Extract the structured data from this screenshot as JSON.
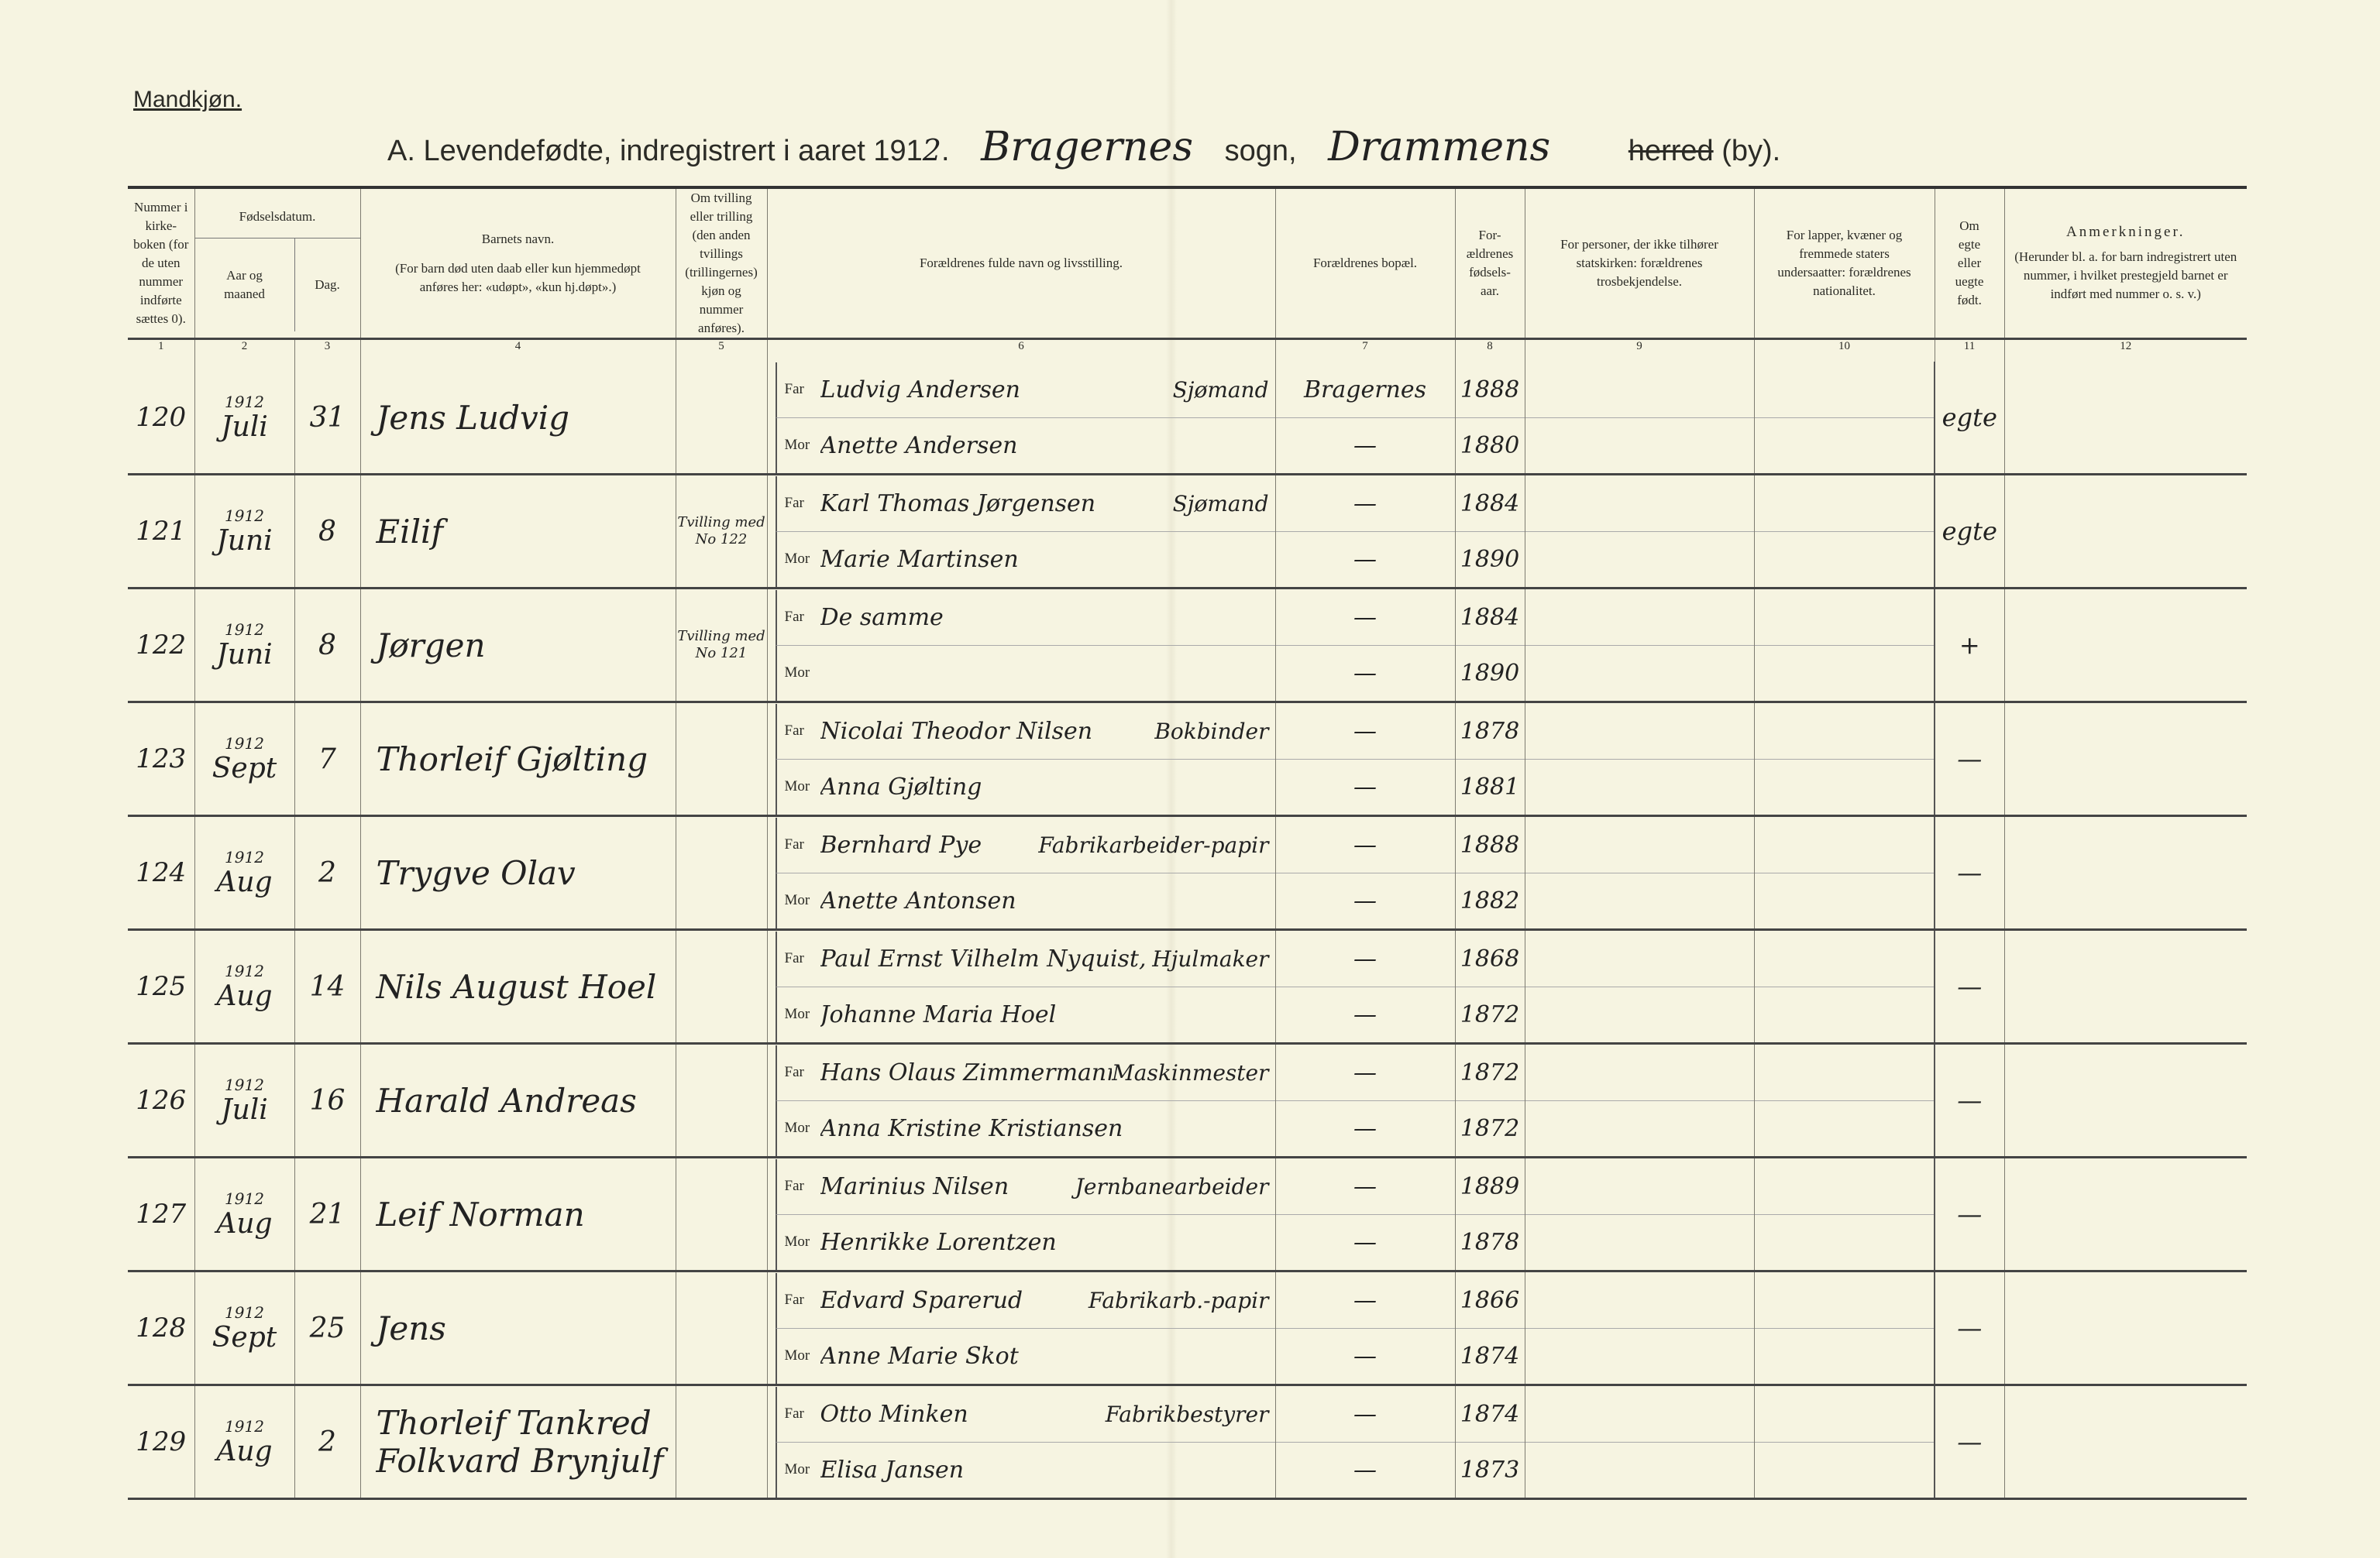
{
  "page": {
    "gender_label": "Mandkjøn.",
    "title_prefix": "A.  Levendefødte, indregistrert i aaret 191",
    "title_year_suffix": "2",
    "parish": "Bragernes",
    "sogn_label": "sogn,",
    "municipality": "Drammens",
    "herred_label": "herred",
    "by_label": "(by)."
  },
  "headers": {
    "c1": "Nummer i kirke-boken (for de uten nummer indførte sættes 0).",
    "c2_group": "Fødselsdatum.",
    "c2": "Aar og maaned",
    "c3": "Dag.",
    "c4_title": "Barnets navn.",
    "c4_note": "(For barn død uten daab eller kun hjemmedøpt anføres her: «udøpt», «kun hj.døpt».)",
    "c5": "Om tvilling eller trilling (den anden tvillings (trillingernes) kjøn og nummer anføres).",
    "c6": "Forældrenes fulde navn og livsstilling.",
    "c7": "Forældrenes bopæl.",
    "c8": "For-ældrenes fødsels-aar.",
    "c9": "For personer, der ikke tilhører statskirken: forældrenes trosbekjendelse.",
    "c10": "For lapper, kvæner og fremmede staters undersaatter: forældrenes nationalitet.",
    "c11": "Om egte eller uegte født.",
    "c12_title": "Anmerkninger.",
    "c12_note": "(Herunder bl. a. for barn indregistrert uten nummer, i hvilket prestegjeld barnet er indført med nummer o. s. v.)"
  },
  "column_numbers": [
    "1",
    "2",
    "3",
    "4",
    "5",
    "6",
    "7",
    "8",
    "9",
    "10",
    "11",
    "12"
  ],
  "labels": {
    "far": "Far",
    "mor": "Mor"
  },
  "entries": [
    {
      "number": "120",
      "year": "1912",
      "month": "Juli",
      "day": "31",
      "name": "Jens Ludvig",
      "twin": "",
      "father": "Ludvig Andersen",
      "occupation": "Sjømand",
      "mother": "Anette Andersen",
      "residence_father": "Bragernes",
      "residence_mother": "—",
      "father_born": "1888",
      "mother_born": "1880",
      "legitimacy": "egte"
    },
    {
      "number": "121",
      "year": "1912",
      "month": "Juni",
      "day": "8",
      "name": "Eilif",
      "twin": "Tvilling med No 122",
      "father": "Karl Thomas Jørgensen",
      "occupation": "Sjømand",
      "mother": "Marie Martinsen",
      "residence_father": "—",
      "residence_mother": "—",
      "father_born": "1884",
      "mother_born": "1890",
      "legitimacy": "egte"
    },
    {
      "number": "122",
      "year": "1912",
      "month": "Juni",
      "day": "8",
      "name": "Jørgen",
      "twin": "Tvilling med No 121",
      "father": "De samme",
      "occupation": "",
      "mother": "",
      "residence_father": "—",
      "residence_mother": "—",
      "father_born": "1884",
      "mother_born": "1890",
      "legitimacy": "+"
    },
    {
      "number": "123",
      "year": "1912",
      "month": "Sept",
      "day": "7",
      "name": "Thorleif Gjølting",
      "twin": "",
      "father": "Nicolai Theodor Nilsen",
      "occupation": "Bokbinder",
      "mother": "Anna Gjølting",
      "residence_father": "—",
      "residence_mother": "—",
      "father_born": "1878",
      "mother_born": "1881",
      "legitimacy": "—"
    },
    {
      "number": "124",
      "year": "1912",
      "month": "Aug",
      "day": "2",
      "name": "Trygve Olav",
      "twin": "",
      "father": "Bernhard Pye",
      "occupation": "Fabrikarbeider-papir",
      "mother": "Anette Antonsen",
      "residence_father": "—",
      "residence_mother": "—",
      "father_born": "1888",
      "mother_born": "1882",
      "legitimacy": "—"
    },
    {
      "number": "125",
      "year": "1912",
      "month": "Aug",
      "day": "14",
      "name": "Nils August Hoel",
      "twin": "",
      "father": "Paul Ernst Vilhelm Nyquist,",
      "occupation": "Hjulmaker",
      "mother": "Johanne Maria Hoel",
      "residence_father": "—",
      "residence_mother": "—",
      "father_born": "1868",
      "mother_born": "1872",
      "legitimacy": "—"
    },
    {
      "number": "126",
      "year": "1912",
      "month": "Juli",
      "day": "16",
      "name": "Harald Andreas",
      "twin": "",
      "father": "Hans Olaus Zimmermann,",
      "occupation": "Maskinmester",
      "mother": "Anna Kristine Kristiansen",
      "residence_father": "—",
      "residence_mother": "—",
      "father_born": "1872",
      "mother_born": "1872",
      "legitimacy": "—"
    },
    {
      "number": "127",
      "year": "1912",
      "month": "Aug",
      "day": "21",
      "name": "Leif Norman",
      "twin": "",
      "father": "Marinius Nilsen",
      "occupation": "Jernbanearbeider",
      "mother": "Henrikke Lorentzen",
      "residence_father": "—",
      "residence_mother": "—",
      "father_born": "1889",
      "mother_born": "1878",
      "legitimacy": "—"
    },
    {
      "number": "128",
      "year": "1912",
      "month": "Sept",
      "day": "25",
      "name": "Jens",
      "twin": "",
      "father": "Edvard Sparerud",
      "occupation": "Fabrikarb.-papir",
      "mother": "Anne Marie Skot",
      "residence_father": "—",
      "residence_mother": "—",
      "father_born": "1866",
      "mother_born": "1874",
      "legitimacy": "—"
    },
    {
      "number": "129",
      "year": "1912",
      "month": "Aug",
      "day": "2",
      "name": "Thorleif Tankred Folkvard Brynjulf",
      "twin": "",
      "father": "Otto Minken",
      "occupation": "Fabrikbestyrer",
      "mother": "Elisa Jansen",
      "residence_father": "—",
      "residence_mother": "—",
      "father_born": "1874",
      "mother_born": "1873",
      "legitimacy": "—"
    }
  ]
}
